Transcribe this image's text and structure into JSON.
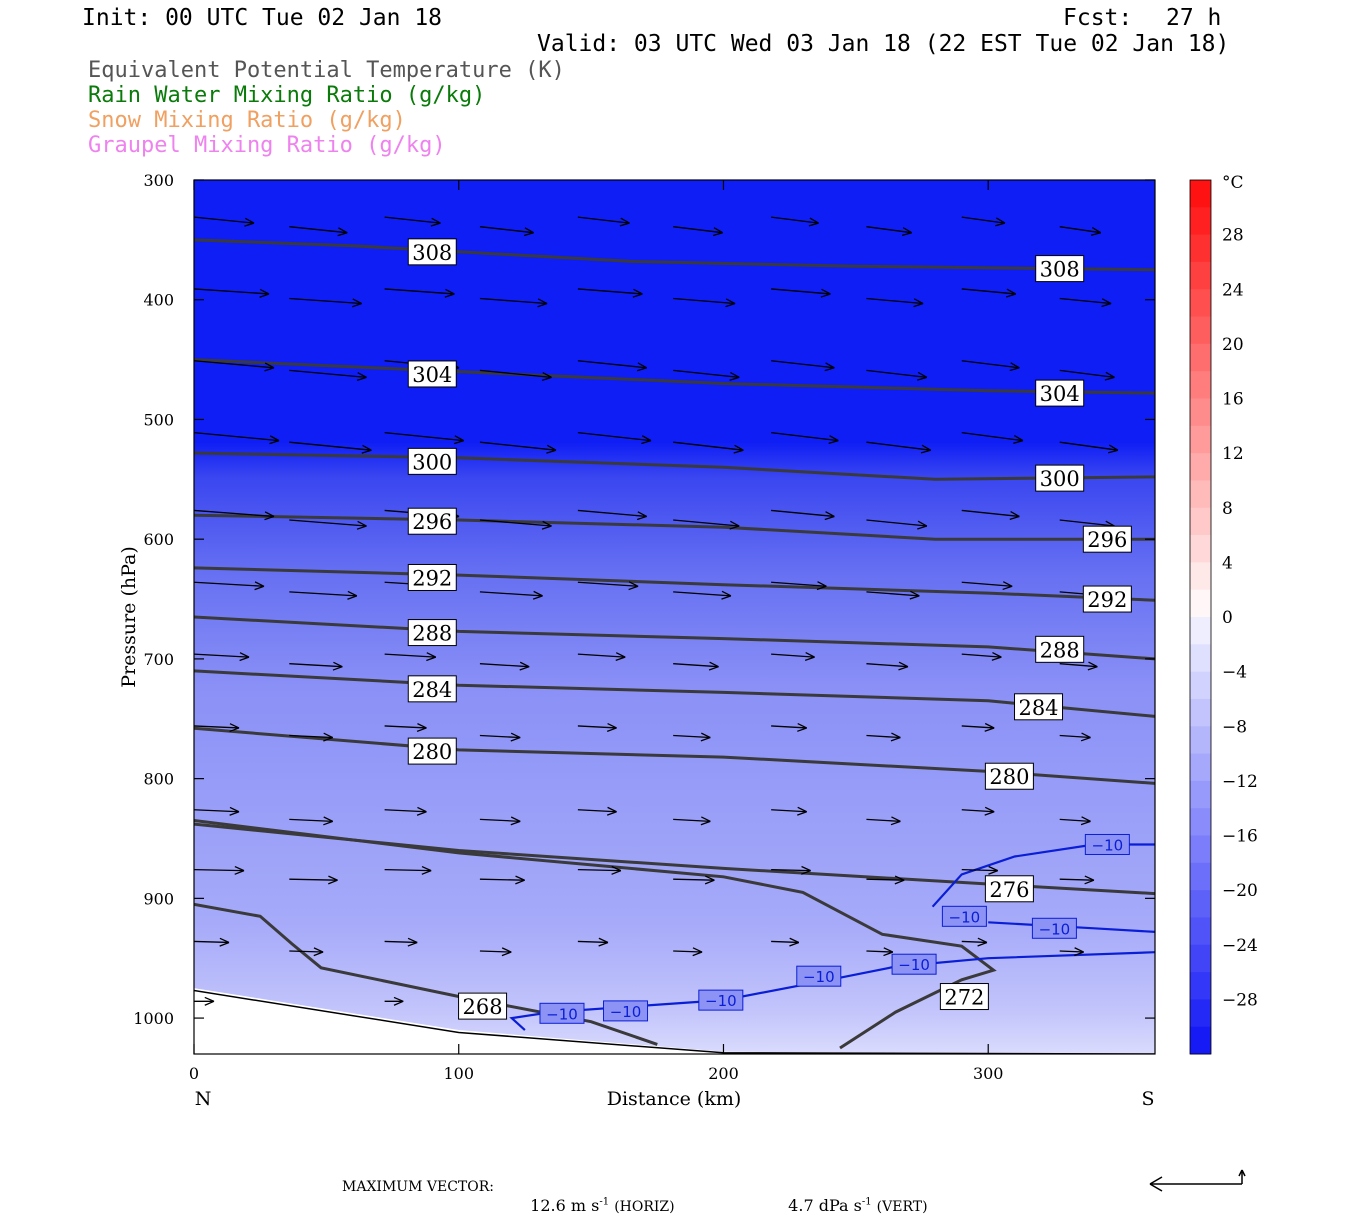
{
  "header": {
    "init": "Init: 00 UTC Tue 02 Jan 18",
    "fcst_label": "Fcst:",
    "fcst_value": "27 h",
    "valid": "Valid: 03 UTC Wed 03 Jan 18 (22 EST Tue 02 Jan 18)"
  },
  "fields": [
    {
      "label": "Equivalent Potential Temperature (K)",
      "color": "#555555"
    },
    {
      "label": "Rain Water Mixing Ratio (g/kg)",
      "color": "#0a7a0a"
    },
    {
      "label": "Snow Mixing Ratio (g/kg)",
      "color": "#f0a060"
    },
    {
      "label": "Graupel Mixing Ratio (g/kg)",
      "color": "#ee82ee"
    }
  ],
  "chart_data": {
    "type": "cross-section contour",
    "xlabel": "Distance (km)",
    "ylabel": "Pressure (hPa)",
    "xlim": [
      0,
      363
    ],
    "ylim": [
      1030,
      300
    ],
    "x_ticks": [
      0,
      100,
      200,
      300
    ],
    "y_ticks": [
      300,
      400,
      500,
      600,
      700,
      800,
      900,
      1000
    ],
    "x_end_labels": {
      "left": "N",
      "right": "S"
    },
    "theta_e_contours": [
      {
        "level": "308",
        "points": [
          [
            0,
            350
          ],
          [
            60,
            355
          ],
          [
            165,
            368
          ],
          [
            250,
            372
          ],
          [
            363,
            375
          ]
        ],
        "labels": [
          [
            90,
            360
          ],
          [
            327,
            374
          ]
        ]
      },
      {
        "level": "304",
        "points": [
          [
            0,
            450
          ],
          [
            100,
            460
          ],
          [
            200,
            470
          ],
          [
            300,
            476
          ],
          [
            363,
            478
          ]
        ],
        "labels": [
          [
            90,
            462
          ],
          [
            327,
            478
          ]
        ]
      },
      {
        "level": "300",
        "points": [
          [
            0,
            528
          ],
          [
            100,
            532
          ],
          [
            200,
            540
          ],
          [
            280,
            550
          ],
          [
            363,
            548
          ]
        ],
        "labels": [
          [
            90,
            535
          ],
          [
            327,
            549
          ]
        ]
      },
      {
        "level": "296",
        "points": [
          [
            0,
            580
          ],
          [
            100,
            584
          ],
          [
            200,
            590
          ],
          [
            280,
            600
          ],
          [
            363,
            600
          ]
        ],
        "labels": [
          [
            90,
            585
          ],
          [
            345,
            600
          ]
        ]
      },
      {
        "level": "292",
        "points": [
          [
            0,
            624
          ],
          [
            100,
            630
          ],
          [
            200,
            638
          ],
          [
            300,
            645
          ],
          [
            363,
            651
          ]
        ],
        "labels": [
          [
            90,
            632
          ],
          [
            345,
            650
          ]
        ]
      },
      {
        "level": "288",
        "points": [
          [
            0,
            665
          ],
          [
            100,
            677
          ],
          [
            200,
            683
          ],
          [
            300,
            690
          ],
          [
            363,
            700
          ]
        ],
        "labels": [
          [
            90,
            678
          ],
          [
            327,
            692
          ]
        ]
      },
      {
        "level": "284",
        "points": [
          [
            0,
            710
          ],
          [
            100,
            722
          ],
          [
            200,
            728
          ],
          [
            300,
            735
          ],
          [
            363,
            748
          ]
        ],
        "labels": [
          [
            90,
            725
          ],
          [
            319,
            740
          ]
        ]
      },
      {
        "level": "280",
        "points": [
          [
            0,
            758
          ],
          [
            100,
            776
          ],
          [
            200,
            782
          ],
          [
            300,
            794
          ],
          [
            363,
            804
          ]
        ],
        "labels": [
          [
            90,
            777
          ],
          [
            308,
            798
          ]
        ]
      },
      {
        "level": "276",
        "points": [
          [
            0,
            838
          ],
          [
            100,
            860
          ],
          [
            200,
            875
          ],
          [
            300,
            888
          ],
          [
            363,
            896
          ]
        ],
        "labels": [
          [
            308,
            892
          ]
        ]
      },
      {
        "level": "272",
        "points": [
          [
            0,
            905
          ],
          [
            25,
            915
          ],
          [
            37,
            938
          ],
          [
            48,
            958
          ],
          [
            100,
            982
          ],
          [
            150,
            1003
          ],
          [
            175,
            1022
          ]
        ],
        "labels": []
      },
      {
        "level": "272",
        "points": [
          [
            244,
            1025
          ],
          [
            265,
            995
          ],
          [
            290,
            968
          ],
          [
            302,
            960
          ],
          [
            290,
            940
          ],
          [
            260,
            930
          ],
          [
            230,
            895
          ],
          [
            200,
            882
          ],
          [
            100,
            862
          ],
          [
            0,
            835
          ]
        ],
        "labels": [
          [
            291,
            982
          ]
        ]
      },
      {
        "level": "268",
        "points": [],
        "labels": [
          [
            109,
            990
          ]
        ]
      }
    ],
    "temperature_contours": [
      {
        "level": "-10",
        "points": [
          [
            125,
            1010
          ],
          [
            120,
            1000
          ],
          [
            135,
            995
          ],
          [
            200,
            985
          ],
          [
            240,
            968
          ],
          [
            265,
            957
          ],
          [
            300,
            950
          ],
          [
            363,
            945
          ]
        ],
        "labels": [
          [
            139,
            996
          ],
          [
            163,
            994
          ],
          [
            199,
            985
          ],
          [
            236,
            965
          ],
          [
            272,
            955
          ]
        ]
      },
      {
        "level": "-10",
        "points": [
          [
            279,
            907
          ],
          [
            290,
            880
          ],
          [
            310,
            865
          ],
          [
            340,
            855
          ],
          [
            363,
            855
          ]
        ],
        "labels": [
          [
            291,
            915
          ],
          [
            325,
            925
          ],
          [
            345,
            855
          ]
        ]
      },
      {
        "level": "-10",
        "points": [
          [
            300,
            920
          ],
          [
            340,
            925
          ],
          [
            363,
            928
          ]
        ],
        "labels": []
      }
    ],
    "color_bar": {
      "unit": "°C",
      "tick_labels": [
        "28",
        "24",
        "20",
        "16",
        "12",
        "8",
        "4",
        "0",
        "−4",
        "−8",
        "−12",
        "−16",
        "−20",
        "−24",
        "−28"
      ],
      "range": [
        -32,
        32
      ],
      "step": 2
    },
    "max_vector": {
      "label": "MAXIMUM VECTOR:",
      "horiz": "12.6 m s",
      "horiz_sup": "-1",
      "horiz_tail": "(HORIZ)",
      "vert": "4.7 dPa s",
      "vert_sup": "-1",
      "vert_tail": "(VERT)"
    }
  }
}
